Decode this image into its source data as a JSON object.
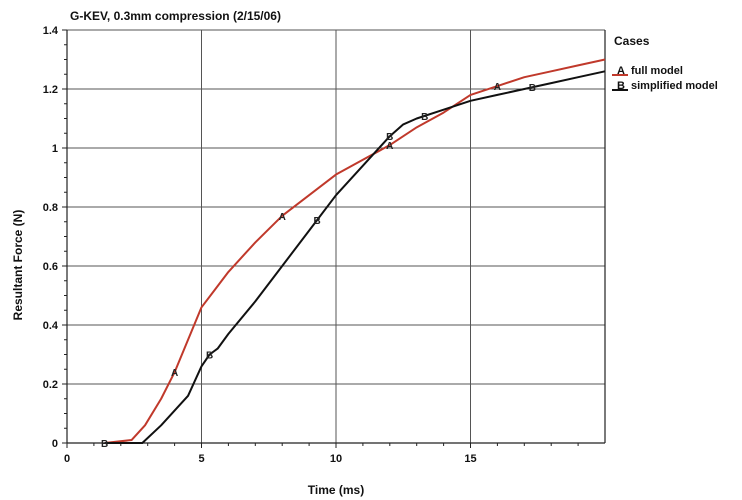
{
  "chart_data": {
    "type": "line",
    "title": "G-KEV, 0.3mm compression (2/15/06)",
    "xlabel": "Time (ms)",
    "ylabel": "Resultant Force (N)",
    "xlim": [
      0,
      20
    ],
    "ylim": [
      0,
      1.4
    ],
    "xticks": [
      "0",
      "5",
      "10",
      "15"
    ],
    "yticks": [
      "0",
      "0.2",
      "0.4",
      "0.6",
      "0.8",
      "1",
      "1.2",
      "1.4"
    ],
    "grid": true,
    "legend": {
      "title": "Cases",
      "placement": "right",
      "entries": [
        {
          "marker": "A",
          "label": "full model"
        },
        {
          "marker": "B",
          "label": "simplified model"
        }
      ]
    },
    "series": [
      {
        "name": "full model",
        "marker": "A",
        "color": "#c0392b",
        "x": [
          1.4,
          2.4,
          2.9,
          3.5,
          4.0,
          4.5,
          5.0,
          5.5,
          6.0,
          7.0,
          8.0,
          9.0,
          10.0,
          11.0,
          12.0,
          13.0,
          14.0,
          15.0,
          16.0,
          17.0,
          18.0,
          19.0,
          20.0
        ],
        "y": [
          0.0,
          0.01,
          0.06,
          0.15,
          0.24,
          0.35,
          0.46,
          0.52,
          0.58,
          0.68,
          0.77,
          0.84,
          0.91,
          0.96,
          1.01,
          1.07,
          1.12,
          1.18,
          1.21,
          1.24,
          1.26,
          1.28,
          1.3
        ],
        "marker_x": [
          4.0,
          8.0,
          12.0,
          16.0
        ]
      },
      {
        "name": "simplified model",
        "marker": "B",
        "color": "#111111",
        "x": [
          1.4,
          2.8,
          3.5,
          4.0,
          4.5,
          5.0,
          5.3,
          5.6,
          6.0,
          7.0,
          8.0,
          9.0,
          10.0,
          11.0,
          12.0,
          12.5,
          13.0,
          14.0,
          15.0,
          16.0,
          17.0,
          18.0,
          19.0,
          20.0
        ],
        "y": [
          0.0,
          0.0,
          0.06,
          0.11,
          0.16,
          0.26,
          0.3,
          0.32,
          0.37,
          0.48,
          0.6,
          0.72,
          0.84,
          0.94,
          1.04,
          1.08,
          1.1,
          1.13,
          1.16,
          1.18,
          1.2,
          1.22,
          1.24,
          1.26
        ],
        "marker_x": [
          1.4,
          5.3,
          9.3,
          12.0,
          13.3,
          17.3
        ]
      }
    ]
  }
}
